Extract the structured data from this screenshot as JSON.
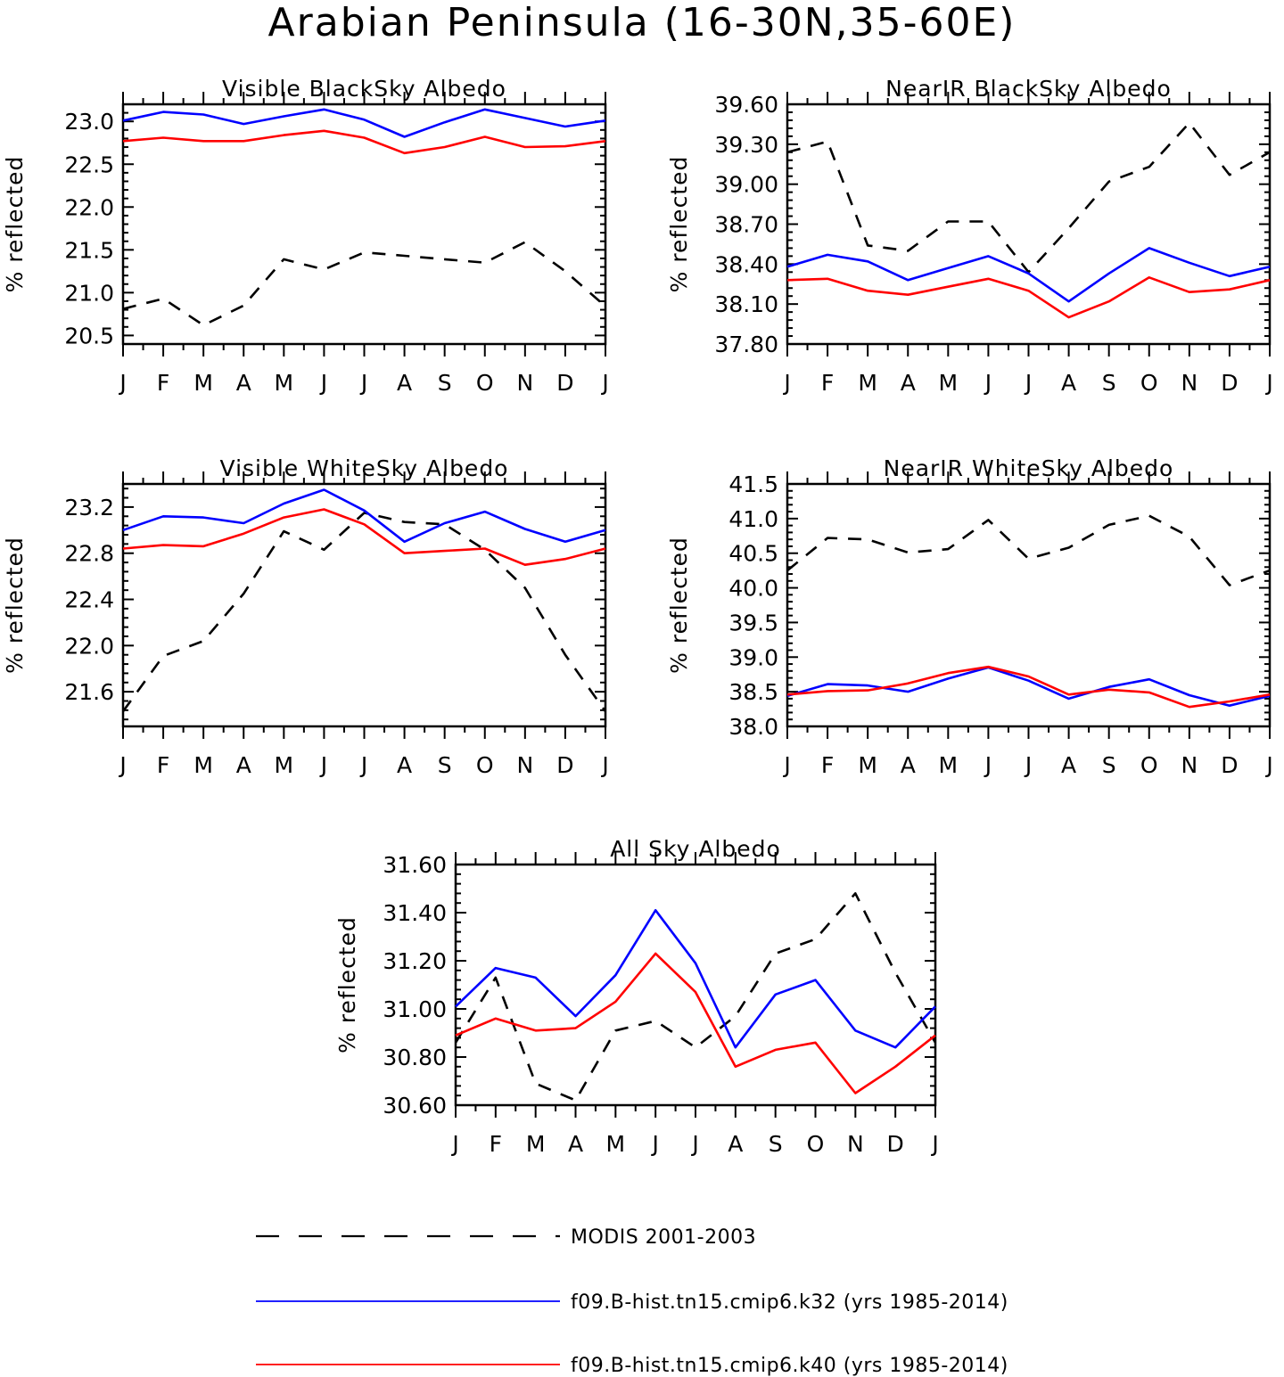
{
  "figure": {
    "title": "Arabian Peninsula (16-30N,35-60E)"
  },
  "legend": {
    "entries": [
      {
        "label": "MODIS 2001-2003",
        "color": "#000000",
        "dash": true
      },
      {
        "label": "f09.B-hist.tn15.cmip6.k32 (yrs 1985-2014)",
        "color": "#0000ff",
        "dash": false
      },
      {
        "label": "f09.B-hist.tn15.cmip6.k40 (yrs 1985-2014)",
        "color": "#ff0000",
        "dash": false
      }
    ]
  },
  "chart_data": [
    {
      "type": "line",
      "title": "Visible BlackSky Albedo",
      "ylabel": "% reflected",
      "categories": [
        "J",
        "F",
        "M",
        "A",
        "M",
        "J",
        "J",
        "A",
        "S",
        "O",
        "N",
        "D",
        "J"
      ],
      "ylim": [
        20.4,
        23.2
      ],
      "yticks": [
        20.5,
        21.0,
        21.5,
        22.0,
        22.5,
        23.0
      ],
      "ytick_labels": [
        "20.5",
        "21.0",
        "21.5",
        "22.0",
        "22.5",
        "23.0"
      ],
      "series": [
        {
          "name": "MODIS 2001-2003",
          "color": "#000000",
          "dash": true,
          "values": [
            20.81,
            20.93,
            20.62,
            20.85,
            21.39,
            21.27,
            21.47,
            21.43,
            21.39,
            21.35,
            21.59,
            21.25,
            20.84
          ]
        },
        {
          "name": "f09.B-hist.tn15.cmip6.k32 (yrs 1985-2014)",
          "color": "#0000ff",
          "dash": false,
          "values": [
            23.01,
            23.11,
            23.08,
            22.97,
            23.06,
            23.14,
            23.02,
            22.82,
            22.99,
            23.14,
            23.04,
            22.94,
            23.01
          ]
        },
        {
          "name": "f09.B-hist.tn15.cmip6.k40 (yrs 1985-2014)",
          "color": "#ff0000",
          "dash": false,
          "values": [
            22.77,
            22.81,
            22.77,
            22.77,
            22.84,
            22.89,
            22.81,
            22.63,
            22.7,
            22.82,
            22.7,
            22.71,
            22.77
          ]
        }
      ]
    },
    {
      "type": "line",
      "title": "NearIR BlackSky Albedo",
      "ylabel": "% reflected",
      "categories": [
        "J",
        "F",
        "M",
        "A",
        "M",
        "J",
        "J",
        "A",
        "S",
        "O",
        "N",
        "D",
        "J"
      ],
      "ylim": [
        37.8,
        39.6
      ],
      "yticks": [
        37.8,
        38.1,
        38.4,
        38.7,
        39.0,
        39.3,
        39.6
      ],
      "ytick_labels": [
        "37.80",
        "38.10",
        "38.40",
        "38.70",
        "39.00",
        "39.30",
        "39.60"
      ],
      "series": [
        {
          "name": "MODIS 2001-2003",
          "color": "#000000",
          "dash": true,
          "values": [
            39.24,
            39.32,
            38.54,
            38.5,
            38.72,
            38.72,
            38.34,
            38.67,
            39.02,
            39.13,
            39.46,
            39.07,
            39.24
          ]
        },
        {
          "name": "f09.B-hist.tn15.cmip6.k32 (yrs 1985-2014)",
          "color": "#0000ff",
          "dash": false,
          "values": [
            38.38,
            38.47,
            38.42,
            38.28,
            38.37,
            38.46,
            38.33,
            38.12,
            38.33,
            38.52,
            38.41,
            38.31,
            38.38
          ]
        },
        {
          "name": "f09.B-hist.tn15.cmip6.k40 (yrs 1985-2014)",
          "color": "#ff0000",
          "dash": false,
          "values": [
            38.28,
            38.29,
            38.2,
            38.17,
            38.23,
            38.29,
            38.2,
            38.0,
            38.12,
            38.3,
            38.19,
            38.21,
            38.28
          ]
        }
      ]
    },
    {
      "type": "line",
      "title": "Visible WhiteSky Albedo",
      "ylabel": "% reflected",
      "categories": [
        "J",
        "F",
        "M",
        "A",
        "M",
        "J",
        "J",
        "A",
        "S",
        "O",
        "N",
        "D",
        "J"
      ],
      "ylim": [
        21.3,
        23.4
      ],
      "yticks": [
        21.6,
        22.0,
        22.4,
        22.8,
        23.2
      ],
      "ytick_labels": [
        "21.6",
        "22.0",
        "22.4",
        "22.8",
        "23.2"
      ],
      "series": [
        {
          "name": "MODIS 2001-2003",
          "color": "#000000",
          "dash": true,
          "values": [
            21.43,
            21.91,
            22.04,
            22.45,
            22.99,
            22.83,
            23.15,
            23.07,
            23.05,
            22.83,
            22.5,
            21.92,
            21.43
          ]
        },
        {
          "name": "f09.B-hist.tn15.cmip6.k32 (yrs 1985-2014)",
          "color": "#0000ff",
          "dash": false,
          "values": [
            23.0,
            23.12,
            23.11,
            23.06,
            23.23,
            23.35,
            23.17,
            22.9,
            23.06,
            23.16,
            23.01,
            22.9,
            23.0
          ]
        },
        {
          "name": "f09.B-hist.tn15.cmip6.k40 (yrs 1985-2014)",
          "color": "#ff0000",
          "dash": false,
          "values": [
            22.84,
            22.87,
            22.86,
            22.97,
            23.11,
            23.18,
            23.05,
            22.8,
            22.82,
            22.84,
            22.7,
            22.75,
            22.84
          ]
        }
      ]
    },
    {
      "type": "line",
      "title": "NearIR WhiteSky Albedo",
      "ylabel": "% reflected",
      "categories": [
        "J",
        "F",
        "M",
        "A",
        "M",
        "J",
        "J",
        "A",
        "S",
        "O",
        "N",
        "D",
        "J"
      ],
      "ylim": [
        38.0,
        41.5
      ],
      "yticks": [
        38.0,
        38.5,
        39.0,
        39.5,
        40.0,
        40.5,
        41.0,
        41.5
      ],
      "ytick_labels": [
        "38.0",
        "38.5",
        "39.0",
        "39.5",
        "40.0",
        "40.5",
        "41.0",
        "41.5"
      ],
      "series": [
        {
          "name": "MODIS 2001-2003",
          "color": "#000000",
          "dash": true,
          "values": [
            40.25,
            40.72,
            40.7,
            40.51,
            40.56,
            40.98,
            40.42,
            40.58,
            40.91,
            41.04,
            40.74,
            40.04,
            40.25
          ]
        },
        {
          "name": "f09.B-hist.tn15.cmip6.k32 (yrs 1985-2014)",
          "color": "#0000ff",
          "dash": false,
          "values": [
            38.44,
            38.61,
            38.59,
            38.5,
            38.69,
            38.85,
            38.66,
            38.4,
            38.57,
            38.68,
            38.45,
            38.3,
            38.44
          ]
        },
        {
          "name": "f09.B-hist.tn15.cmip6.k40 (yrs 1985-2014)",
          "color": "#ff0000",
          "dash": false,
          "values": [
            38.46,
            38.51,
            38.52,
            38.62,
            38.77,
            38.86,
            38.72,
            38.46,
            38.53,
            38.49,
            38.28,
            38.36,
            38.46
          ]
        }
      ]
    },
    {
      "type": "line",
      "title": "All Sky Albedo",
      "ylabel": "% reflected",
      "categories": [
        "J",
        "F",
        "M",
        "A",
        "M",
        "J",
        "J",
        "A",
        "S",
        "O",
        "N",
        "D",
        "J"
      ],
      "ylim": [
        30.6,
        31.6
      ],
      "yticks": [
        30.6,
        30.8,
        31.0,
        31.2,
        31.4,
        31.6
      ],
      "ytick_labels": [
        "30.60",
        "30.80",
        "31.00",
        "31.20",
        "31.40",
        "31.60"
      ],
      "series": [
        {
          "name": "MODIS 2001-2003",
          "color": "#000000",
          "dash": true,
          "values": [
            30.86,
            31.13,
            30.69,
            30.62,
            30.91,
            30.95,
            30.84,
            30.97,
            31.23,
            31.29,
            31.48,
            31.15,
            30.86
          ]
        },
        {
          "name": "f09.B-hist.tn15.cmip6.k32 (yrs 1985-2014)",
          "color": "#0000ff",
          "dash": false,
          "values": [
            31.01,
            31.17,
            31.13,
            30.97,
            31.14,
            31.41,
            31.19,
            30.84,
            31.06,
            31.12,
            30.91,
            30.84,
            31.01
          ]
        },
        {
          "name": "f09.B-hist.tn15.cmip6.k40 (yrs 1985-2014)",
          "color": "#ff0000",
          "dash": false,
          "values": [
            30.89,
            30.96,
            30.91,
            30.92,
            31.03,
            31.23,
            31.07,
            30.76,
            30.83,
            30.86,
            30.65,
            30.76,
            30.89
          ]
        }
      ]
    }
  ]
}
